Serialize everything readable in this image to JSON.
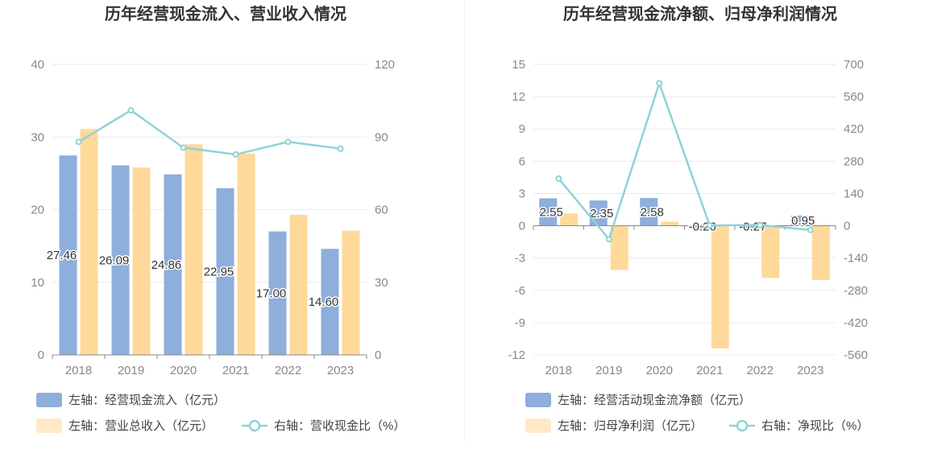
{
  "colors": {
    "blue": "#8eaedb",
    "orange": "#ffd99a",
    "orange_legend": "#ffe9c9",
    "line": "#8fd3d6",
    "grid": "#e6eaf4",
    "axis": "#888888"
  },
  "chart_data": [
    {
      "type": "bar",
      "title": "历年经营现金流入、营业收入情况",
      "categories": [
        "2018",
        "2019",
        "2020",
        "2021",
        "2022",
        "2023"
      ],
      "left_axis": {
        "min": 0,
        "max": 40,
        "ticks": [
          "0",
          "10",
          "20",
          "30",
          "40"
        ]
      },
      "right_axis": {
        "min": 0,
        "max": 120,
        "ticks": [
          "0",
          "30",
          "60",
          "90",
          "120"
        ]
      },
      "series": [
        {
          "name": "左轴：经营现金流入（亿元）",
          "type": "bar",
          "axis": "left",
          "values": [
            27.46,
            26.09,
            24.86,
            22.95,
            17.0,
            14.6
          ],
          "labels": [
            "27.46",
            "26.09",
            "24.86",
            "22.95",
            "17.00",
            "14.60"
          ]
        },
        {
          "name": "左轴：营业总收入（亿元）",
          "type": "bar",
          "axis": "left",
          "values": [
            31.1,
            25.8,
            29.0,
            27.7,
            19.3,
            17.1
          ]
        },
        {
          "name": "右轴：营收现金比（%）",
          "type": "line",
          "axis": "right",
          "values": [
            88.0,
            101.0,
            85.6,
            82.8,
            88.0,
            85.2
          ]
        }
      ]
    },
    {
      "type": "bar",
      "title": "历年经营现金流净额、归母净利润情况",
      "categories": [
        "2018",
        "2019",
        "2020",
        "2021",
        "2022",
        "2023"
      ],
      "left_axis": {
        "min": -12,
        "max": 15,
        "ticks": [
          "-12",
          "-9",
          "-6",
          "-3",
          "0",
          "3",
          "6",
          "9",
          "12",
          "15"
        ]
      },
      "right_axis": {
        "min": -560,
        "max": 700,
        "ticks": [
          "-560",
          "-420",
          "-280",
          "-140",
          "0",
          "140",
          "280",
          "420",
          "560",
          "700"
        ]
      },
      "series": [
        {
          "name": "左轴：经营活动现金流净额（亿元）",
          "type": "bar",
          "axis": "left",
          "values": [
            2.55,
            2.35,
            2.58,
            -0.26,
            -0.27,
            0.95
          ],
          "labels": [
            "2.55",
            "2.35",
            "2.58",
            "-0.26",
            "-0.27",
            "0.95"
          ]
        },
        {
          "name": "左轴：归母净利润（亿元）",
          "type": "bar",
          "axis": "left",
          "values": [
            1.15,
            -4.1,
            0.38,
            -11.4,
            -4.85,
            -5.05
          ]
        },
        {
          "name": "右轴：净现比（%）",
          "type": "line",
          "axis": "right",
          "values": [
            205,
            -58,
            618,
            2,
            3,
            -18
          ]
        }
      ]
    }
  ]
}
